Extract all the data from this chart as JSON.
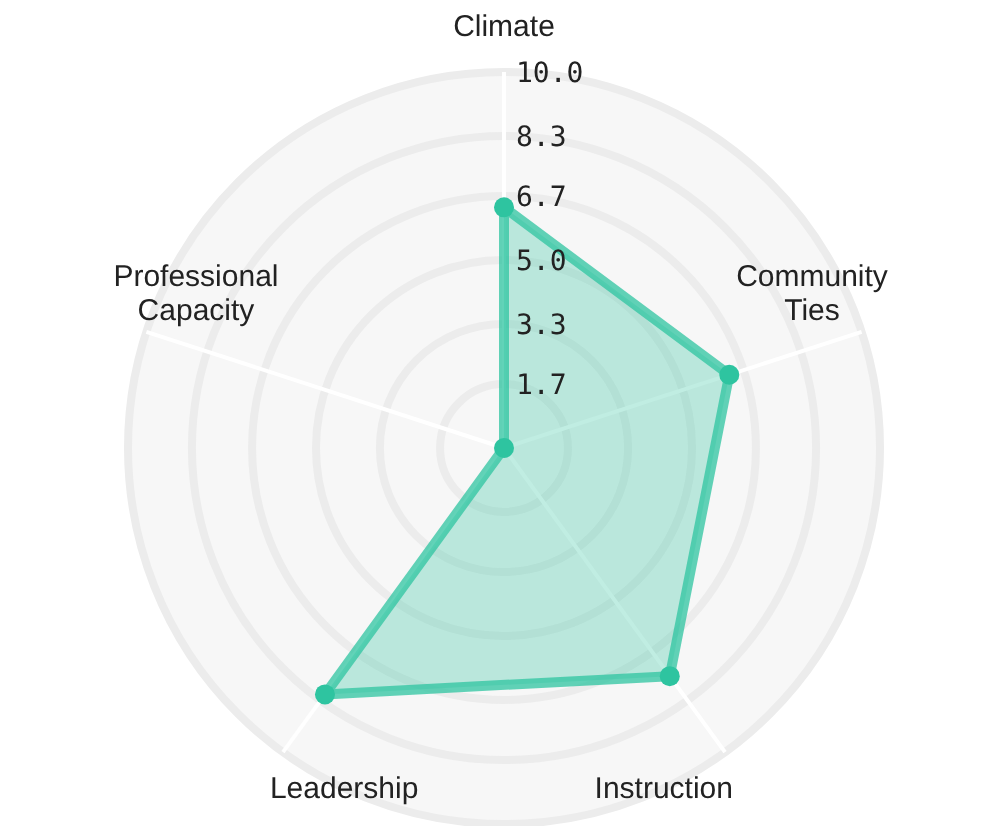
{
  "chart_data": {
    "type": "radar",
    "categories": [
      "Climate",
      "Community Ties",
      "Instruction",
      "Leadership",
      "Professional Capacity"
    ],
    "series": [
      {
        "color": "#2ec4a0",
        "values": [
          6.4,
          6.3,
          7.5,
          8.1,
          0
        ]
      }
    ],
    "ylim": [
      0,
      10
    ],
    "yticks": [
      1.7,
      3.3,
      {
        "value": 5,
        "label": "5.0"
      },
      6.7,
      8.3,
      {
        "value": 10,
        "label": "10.0"
      }
    ],
    "grid": true,
    "marker": "circle"
  }
}
